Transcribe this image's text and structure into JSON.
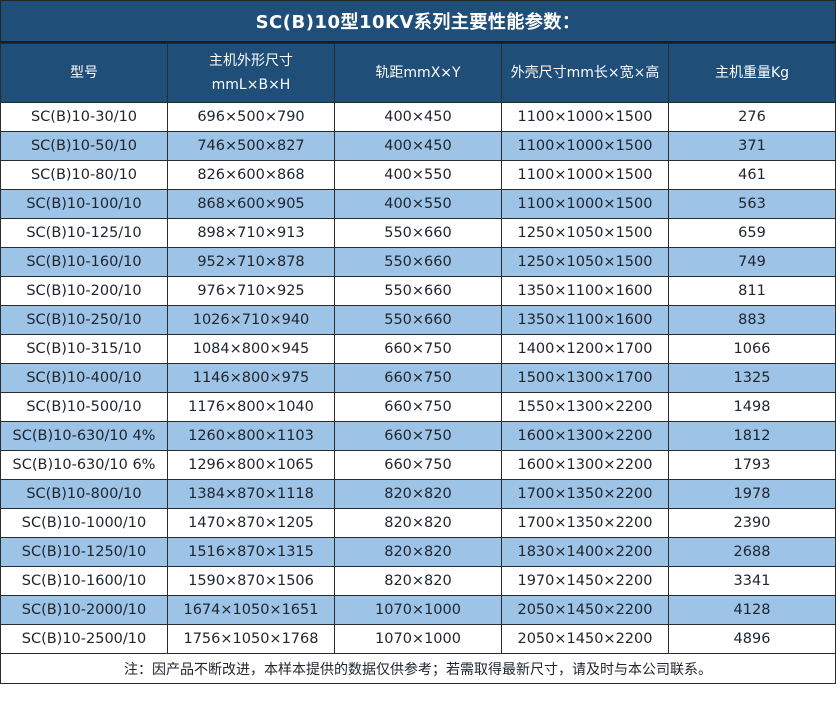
{
  "title": "SC(B)10型10KV系列主要性能参数：",
  "colors": {
    "header_bg": "#1F4E79",
    "row_alt_bg": "#9DC3E6",
    "row_bg": "#FFFFFF",
    "border": "#2B2B2B",
    "header_text": "#FFFFFF",
    "body_text": "#20262E"
  },
  "table": {
    "headers": [
      "型号",
      "主机外形尺寸\nmmL×B×H",
      "轨距mmX×Y",
      "外壳尺寸mm长×宽×高",
      "主机重量Kg"
    ],
    "column_keys": [
      "model",
      "main-size",
      "rail-gauge",
      "shell-size",
      "weight"
    ],
    "rows": [
      [
        "SC(B)10-30/10",
        "696×500×790",
        "400×450",
        "1100×1000×1500",
        "276"
      ],
      [
        "SC(B)10-50/10",
        "746×500×827",
        "400×450",
        "1100×1000×1500",
        "371"
      ],
      [
        "SC(B)10-80/10",
        "826×600×868",
        "400×550",
        "1100×1000×1500",
        "461"
      ],
      [
        "SC(B)10-100/10",
        "868×600×905",
        "400×550",
        "1100×1000×1500",
        "563"
      ],
      [
        "SC(B)10-125/10",
        "898×710×913",
        "550×660",
        "1250×1050×1500",
        "659"
      ],
      [
        "SC(B)10-160/10",
        "952×710×878",
        "550×660",
        "1250×1050×1500",
        "749"
      ],
      [
        "SC(B)10-200/10",
        "976×710×925",
        "550×660",
        "1350×1100×1600",
        "811"
      ],
      [
        "SC(B)10-250/10",
        "1026×710×940",
        "550×660",
        "1350×1100×1600",
        "883"
      ],
      [
        "SC(B)10-315/10",
        "1084×800×945",
        "660×750",
        "1400×1200×1700",
        "1066"
      ],
      [
        "SC(B)10-400/10",
        "1146×800×975",
        "660×750",
        "1500×1300×1700",
        "1325"
      ],
      [
        "SC(B)10-500/10",
        "1176×800×1040",
        "660×750",
        "1550×1300×2200",
        "1498"
      ],
      [
        "SC(B)10-630/10 4%",
        "1260×800×1103",
        "660×750",
        "1600×1300×2200",
        "1812"
      ],
      [
        "SC(B)10-630/10 6%",
        "1296×800×1065",
        "660×750",
        "1600×1300×2200",
        "1793"
      ],
      [
        "SC(B)10-800/10",
        "1384×870×1118",
        "820×820",
        "1700×1350×2200",
        "1978"
      ],
      [
        "SC(B)10-1000/10",
        "1470×870×1205",
        "820×820",
        "1700×1350×2200",
        "2390"
      ],
      [
        "SC(B)10-1250/10",
        "1516×870×1315",
        "820×820",
        "1830×1400×2200",
        "2688"
      ],
      [
        "SC(B)10-1600/10",
        "1590×870×1506",
        "820×820",
        "1970×1450×2200",
        "3341"
      ],
      [
        "SC(B)10-2000/10",
        "1674×1050×1651",
        "1070×1000",
        "2050×1450×2200",
        "4128"
      ],
      [
        "SC(B)10-2500/10",
        "1756×1050×1768",
        "1070×1000",
        "2050×1450×2200",
        "4896"
      ]
    ]
  },
  "footer_note": "注：因产品不断改进，本样本提供的数据仅供参考；若需取得最新尺寸，请及时与本公司联系。"
}
